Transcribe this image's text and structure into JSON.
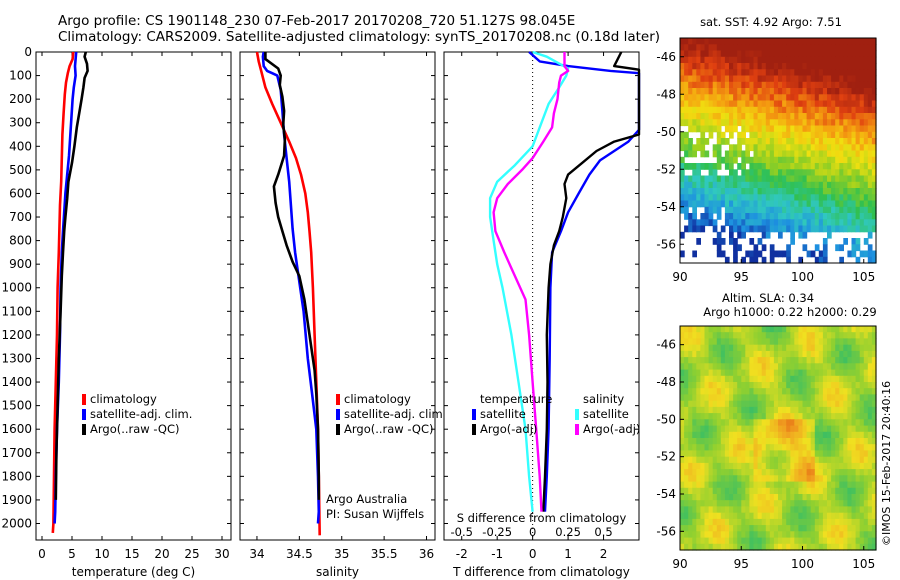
{
  "header": {
    "line1": "Argo profile: CS 1901148_230 07-Feb-2017 20170208_720 51.127S 98.045E",
    "line2": "Climatology: CARS2009. Satellite-adjusted climatology: synTS_20170208.nc (0.18d later)"
  },
  "colors": {
    "climatology": "#ff0000",
    "satellite": "#0000ff",
    "argo": "#000000",
    "sat_salinity": "#33ffff",
    "argo_salinity": "#ff00ff"
  },
  "depth_ticks": [
    0,
    100,
    200,
    300,
    400,
    500,
    600,
    700,
    800,
    900,
    1000,
    1100,
    1200,
    1300,
    1400,
    1500,
    1600,
    1700,
    1800,
    1900,
    2000
  ],
  "chart_data": [
    {
      "type": "line",
      "id": "temperature",
      "xlabel": "temperature (deg C)",
      "xlim": [
        -1,
        31.5
      ],
      "ylim": [
        0,
        2070
      ],
      "xticks": [
        0,
        5,
        10,
        15,
        20,
        25,
        30
      ],
      "legend": [
        "climatology",
        "satellite-adj. clim.",
        "Argo(..raw -QC)"
      ],
      "series": [
        {
          "name": "climatology",
          "key": "climatology",
          "points": [
            [
              5.2,
              0
            ],
            [
              5.1,
              30
            ],
            [
              4.6,
              60
            ],
            [
              4.3,
              90
            ],
            [
              4.0,
              130
            ],
            [
              3.8,
              180
            ],
            [
              3.6,
              260
            ],
            [
              3.4,
              350
            ],
            [
              3.3,
              450
            ],
            [
              3.2,
              550
            ],
            [
              3.0,
              650
            ],
            [
              2.9,
              750
            ],
            [
              2.8,
              850
            ],
            [
              2.6,
              1000
            ],
            [
              2.5,
              1200
            ],
            [
              2.3,
              1400
            ],
            [
              2.1,
              1600
            ],
            [
              2.0,
              1800
            ],
            [
              1.9,
              2000
            ],
            [
              1.8,
              2040
            ]
          ]
        },
        {
          "name": "satellite-adj. clim.",
          "key": "satellite",
          "points": [
            [
              5.7,
              0
            ],
            [
              5.6,
              30
            ],
            [
              5.5,
              60
            ],
            [
              5.6,
              100
            ],
            [
              5.3,
              150
            ],
            [
              5.1,
              200
            ],
            [
              4.9,
              280
            ],
            [
              4.7,
              360
            ],
            [
              4.5,
              440
            ],
            [
              4.2,
              520
            ],
            [
              3.9,
              600
            ],
            [
              3.7,
              680
            ],
            [
              3.5,
              760
            ],
            [
              3.3,
              850
            ],
            [
              3.1,
              1000
            ],
            [
              3.0,
              1200
            ],
            [
              2.8,
              1400
            ],
            [
              2.5,
              1600
            ],
            [
              2.3,
              1800
            ],
            [
              2.2,
              1950
            ],
            [
              2.1,
              2000
            ]
          ]
        },
        {
          "name": "Argo(..raw -QC)",
          "key": "argo",
          "points": [
            [
              7.3,
              0
            ],
            [
              7.1,
              20
            ],
            [
              7.5,
              50
            ],
            [
              7.6,
              80
            ],
            [
              7.1,
              110
            ],
            [
              6.9,
              150
            ],
            [
              6.6,
              200
            ],
            [
              6.2,
              260
            ],
            [
              5.8,
              320
            ],
            [
              5.4,
              400
            ],
            [
              5.0,
              470
            ],
            [
              4.4,
              550
            ],
            [
              4.2,
              620
            ],
            [
              3.9,
              700
            ],
            [
              3.7,
              760
            ],
            [
              3.5,
              850
            ],
            [
              3.3,
              950
            ],
            [
              3.1,
              1100
            ],
            [
              2.8,
              1300
            ],
            [
              2.6,
              1500
            ],
            [
              2.4,
              1700
            ],
            [
              2.3,
              1900
            ]
          ]
        }
      ]
    },
    {
      "type": "line",
      "id": "salinity",
      "xlabel": "salinity",
      "xlim": [
        33.8,
        36.1
      ],
      "ylim": [
        0,
        2070
      ],
      "xticks": [
        34,
        34.5,
        35,
        35.5,
        36
      ],
      "legend": [
        "climatology",
        "satellite-adj. clim.",
        "Argo(..raw -QC)"
      ],
      "annotation": [
        "Argo Australia",
        "PI: Susan Wijffels"
      ],
      "series": [
        {
          "name": "climatology",
          "key": "climatology",
          "points": [
            [
              34.0,
              0
            ],
            [
              34.02,
              40
            ],
            [
              34.05,
              80
            ],
            [
              34.1,
              150
            ],
            [
              34.18,
              220
            ],
            [
              34.28,
              300
            ],
            [
              34.38,
              380
            ],
            [
              34.46,
              450
            ],
            [
              34.52,
              520
            ],
            [
              34.57,
              600
            ],
            [
              34.6,
              680
            ],
            [
              34.62,
              760
            ],
            [
              34.64,
              850
            ],
            [
              34.66,
              1000
            ],
            [
              34.68,
              1200
            ],
            [
              34.7,
              1400
            ],
            [
              34.72,
              1600
            ],
            [
              34.73,
              1800
            ],
            [
              34.74,
              2050
            ]
          ]
        },
        {
          "name": "satellite-adj. clim.",
          "key": "satellite",
          "points": [
            [
              34.08,
              0
            ],
            [
              34.07,
              20
            ],
            [
              34.08,
              60
            ],
            [
              34.12,
              80
            ],
            [
              34.18,
              90
            ],
            [
              34.24,
              100
            ],
            [
              34.28,
              160
            ],
            [
              34.3,
              250
            ],
            [
              34.32,
              350
            ],
            [
              34.35,
              450
            ],
            [
              34.38,
              550
            ],
            [
              34.4,
              650
            ],
            [
              34.42,
              750
            ],
            [
              34.45,
              850
            ],
            [
              34.49,
              950
            ],
            [
              34.55,
              1100
            ],
            [
              34.6,
              1300
            ],
            [
              34.65,
              1450
            ],
            [
              34.7,
              1600
            ],
            [
              34.72,
              1800
            ],
            [
              34.73,
              1950
            ],
            [
              34.72,
              2000
            ]
          ]
        },
        {
          "name": "Argo(..raw -QC)",
          "key": "argo",
          "points": [
            [
              34.1,
              0
            ],
            [
              34.1,
              30
            ],
            [
              34.25,
              70
            ],
            [
              34.28,
              100
            ],
            [
              34.27,
              140
            ],
            [
              34.3,
              190
            ],
            [
              34.32,
              250
            ],
            [
              34.31,
              310
            ],
            [
              34.33,
              370
            ],
            [
              34.32,
              440
            ],
            [
              34.25,
              520
            ],
            [
              34.2,
              570
            ],
            [
              34.22,
              640
            ],
            [
              34.25,
              700
            ],
            [
              34.3,
              760
            ],
            [
              34.35,
              820
            ],
            [
              34.42,
              890
            ],
            [
              34.5,
              950
            ],
            [
              34.56,
              1050
            ],
            [
              34.6,
              1150
            ],
            [
              34.64,
              1250
            ],
            [
              34.68,
              1350
            ],
            [
              34.7,
              1450
            ],
            [
              34.72,
              1600
            ],
            [
              34.73,
              1800
            ],
            [
              34.73,
              1900
            ]
          ]
        }
      ]
    },
    {
      "type": "line",
      "id": "difference",
      "xlabel": "T difference from climatology",
      "x2label": "S difference from climatology",
      "xlim": [
        -2.5,
        3.0
      ],
      "ylim": [
        0,
        2070
      ],
      "xticks": [
        -2,
        -1,
        0,
        1,
        2
      ],
      "x2ticks": [
        "-0.5",
        "-0.25",
        "0",
        "0.25",
        "0.5"
      ],
      "legend_left_title": "temperature",
      "legend_right_title": "salinity",
      "legend_left": [
        "satellite",
        "Argo(-adj)"
      ],
      "legend_right": [
        "satellite",
        "Argo(-adj)"
      ],
      "series": [
        {
          "name": "satellite",
          "group": "temperature",
          "key": "satellite",
          "points": [
            [
              -0.1,
              0
            ],
            [
              0.2,
              40
            ],
            [
              1.0,
              60
            ],
            [
              2.2,
              80
            ],
            [
              3.0,
              90
            ],
            [
              3.0,
              330
            ],
            [
              2.7,
              380
            ],
            [
              2.3,
              420
            ],
            [
              1.9,
              460
            ],
            [
              1.6,
              520
            ],
            [
              1.3,
              600
            ],
            [
              1.0,
              680
            ],
            [
              0.8,
              760
            ],
            [
              0.55,
              850
            ],
            [
              0.5,
              1000
            ],
            [
              0.48,
              1300
            ],
            [
              0.45,
              1600
            ],
            [
              0.4,
              1800
            ],
            [
              0.35,
              1950
            ]
          ]
        },
        {
          "name": "Argo(-adj)",
          "group": "temperature",
          "key": "argo",
          "points": [
            [
              2.5,
              0
            ],
            [
              2.3,
              60
            ],
            [
              3.0,
              75
            ],
            [
              3.0,
              350
            ],
            [
              2.3,
              380
            ],
            [
              1.8,
              420
            ],
            [
              1.4,
              470
            ],
            [
              1.0,
              520
            ],
            [
              0.9,
              560
            ],
            [
              0.95,
              620
            ],
            [
              0.85,
              700
            ],
            [
              0.75,
              760
            ],
            [
              0.6,
              820
            ],
            [
              0.5,
              900
            ],
            [
              0.45,
              1000
            ],
            [
              0.4,
              1200
            ],
            [
              0.42,
              1400
            ],
            [
              0.4,
              1600
            ],
            [
              0.35,
              1800
            ],
            [
              0.3,
              1950
            ]
          ]
        },
        {
          "name": "satellite",
          "group": "salinity",
          "key": "sat_salinity",
          "points": [
            [
              0.0,
              0
            ],
            [
              0.4,
              20
            ],
            [
              1.0,
              70
            ],
            [
              0.95,
              100
            ],
            [
              0.75,
              150
            ],
            [
              0.45,
              220
            ],
            [
              0.25,
              300
            ],
            [
              0.0,
              400
            ],
            [
              -0.5,
              480
            ],
            [
              -1.0,
              550
            ],
            [
              -1.2,
              620
            ],
            [
              -1.2,
              700
            ],
            [
              -1.1,
              800
            ],
            [
              -1.0,
              900
            ],
            [
              -0.85,
              1000
            ],
            [
              -0.6,
              1200
            ],
            [
              -0.4,
              1400
            ],
            [
              -0.2,
              1600
            ],
            [
              -0.1,
              1800
            ],
            [
              0.0,
              1950
            ]
          ]
        },
        {
          "name": "Argo(-adj)",
          "group": "salinity",
          "key": "argo_salinity",
          "points": [
            [
              0.9,
              0
            ],
            [
              0.9,
              60
            ],
            [
              1.0,
              80
            ],
            [
              0.8,
              100
            ],
            [
              0.75,
              130
            ],
            [
              0.7,
              200
            ],
            [
              0.6,
              260
            ],
            [
              0.55,
              320
            ],
            [
              0.3,
              380
            ],
            [
              0.0,
              450
            ],
            [
              -0.3,
              500
            ],
            [
              -0.7,
              560
            ],
            [
              -1.0,
              620
            ],
            [
              -1.1,
              680
            ],
            [
              -1.05,
              760
            ],
            [
              -0.8,
              850
            ],
            [
              -0.5,
              950
            ],
            [
              -0.2,
              1050
            ],
            [
              -0.1,
              1200
            ],
            [
              0.0,
              1400
            ],
            [
              0.1,
              1600
            ],
            [
              0.2,
              1800
            ],
            [
              0.25,
              1950
            ]
          ]
        }
      ]
    },
    {
      "type": "heatmap",
      "id": "sst_map",
      "title": "sat. SST: 4.92  Argo: 7.51",
      "xlim": [
        90,
        106
      ],
      "ylim": [
        -57,
        -45
      ],
      "xticks": [
        90,
        95,
        100,
        105
      ],
      "yticks": [
        -46,
        -48,
        -50,
        -52,
        -54,
        -56
      ]
    },
    {
      "type": "heatmap",
      "id": "sla_map",
      "title_line1": "Altim. SLA: 0.34",
      "title_line2": "Argo h1000: 0.22  h2000: 0.29",
      "xlim": [
        90,
        106
      ],
      "ylim": [
        -57,
        -45
      ],
      "xticks": [
        90,
        95,
        100,
        105
      ],
      "yticks": [
        -46,
        -48,
        -50,
        -52,
        -54,
        -56
      ]
    }
  ],
  "footer": {
    "stamp": "©IMOS 15-Feb-2017 20:40:16"
  }
}
